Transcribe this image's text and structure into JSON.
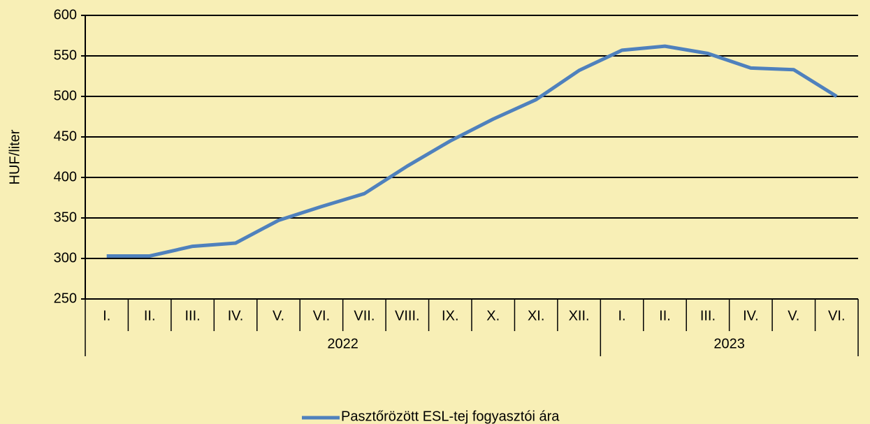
{
  "chart_data": {
    "type": "line",
    "ylabel": "HUF/liter",
    "categories": [
      "I.",
      "II.",
      "III.",
      "IV.",
      "V.",
      "VI.",
      "VII.",
      "VIII.",
      "IX.",
      "X.",
      "XI.",
      "XII.",
      "I.",
      "II.",
      "III.",
      "IV.",
      "V.",
      "VI."
    ],
    "groups": [
      {
        "label": "2022",
        "size": 12
      },
      {
        "label": "2023",
        "size": 6
      }
    ],
    "series": [
      {
        "name": "Pasztőrözött ESL-tej fogyasztói ára",
        "color": "#4f81bd",
        "values": [
          303,
          303,
          315,
          319,
          347,
          364,
          380,
          414,
          445,
          472,
          496,
          532,
          557,
          562,
          553,
          535,
          533,
          500
        ]
      }
    ],
    "ylim": [
      250,
      600
    ],
    "yticks": [
      250,
      300,
      350,
      400,
      450,
      500,
      550,
      600
    ],
    "grid": true,
    "legend": "bottom"
  }
}
